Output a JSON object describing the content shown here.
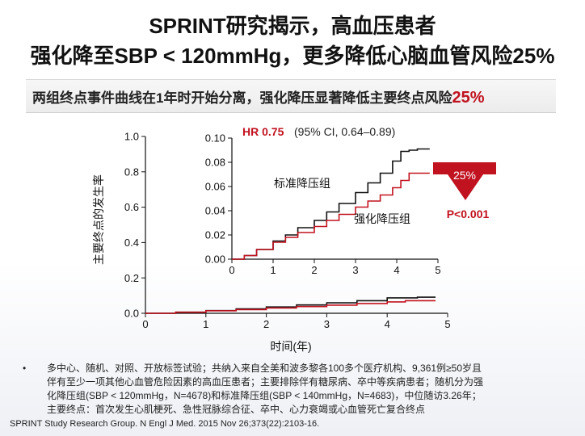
{
  "header": {
    "title_line1": "SPRINT研究揭示，高血压患者",
    "title_line2": "强化降至SBP < 120mmHg，更多降低心脑血管风险25%",
    "subtitle_text": "两组终点事件曲线在1年时开始分离，强化降压显著降低主要终点风险",
    "subtitle_pct": "25%"
  },
  "chart_data": [
    {
      "type": "line",
      "title": "",
      "xlabel": "时间(年)",
      "ylabel": "主要终点的发生率",
      "xlim": [
        0,
        5
      ],
      "ylim": [
        0,
        1.0
      ],
      "xticks": [
        "0",
        "1",
        "2",
        "3",
        "4",
        "5"
      ],
      "yticks": [
        "0.0",
        "0.2",
        "0.4",
        "0.6",
        "0.8",
        "1.0"
      ],
      "series": [
        {
          "name": "标准降压组",
          "color": "#111111",
          "x": [
            0,
            0.5,
            1,
            1.5,
            2,
            2.5,
            3,
            3.5,
            4,
            4.5,
            4.8
          ],
          "y": [
            0,
            0.006,
            0.015,
            0.025,
            0.036,
            0.047,
            0.059,
            0.071,
            0.087,
            0.091,
            0.091
          ]
        },
        {
          "name": "强化降压组",
          "color": "#c1121f",
          "x": [
            0,
            0.5,
            1,
            1.5,
            2,
            2.5,
            3,
            3.5,
            4,
            4.3,
            4.8
          ],
          "y": [
            0,
            0.006,
            0.014,
            0.021,
            0.03,
            0.038,
            0.046,
            0.055,
            0.064,
            0.071,
            0.071
          ]
        }
      ]
    },
    {
      "type": "line",
      "title": "",
      "xlim": [
        0,
        5
      ],
      "ylim": [
        0,
        0.1
      ],
      "xticks": [
        "0",
        "1",
        "2",
        "3",
        "4",
        "5"
      ],
      "yticks": [
        "0.00",
        "0.02",
        "0.04",
        "0.06",
        "0.08",
        "0.10"
      ],
      "hr_label": "HR 0.75",
      "ci_text": "(95% CI, 0.64–0.89)",
      "series": [
        {
          "name": "标准降压组",
          "color": "#111111",
          "x": [
            0,
            0.3,
            0.6,
            1,
            1.3,
            1.6,
            2,
            2.3,
            2.6,
            3,
            3.3,
            3.6,
            3.9,
            4.1,
            4.3,
            4.5,
            4.8
          ],
          "y": [
            0,
            0.003,
            0.008,
            0.015,
            0.02,
            0.026,
            0.032,
            0.039,
            0.046,
            0.055,
            0.063,
            0.071,
            0.081,
            0.089,
            0.09,
            0.091,
            0.091
          ]
        },
        {
          "name": "强化降压组",
          "color": "#c1121f",
          "x": [
            0,
            0.3,
            0.6,
            1,
            1.3,
            1.6,
            2,
            2.3,
            2.6,
            3,
            3.3,
            3.6,
            3.9,
            4.1,
            4.3,
            4.5,
            4.8
          ],
          "y": [
            0,
            0.003,
            0.008,
            0.014,
            0.018,
            0.022,
            0.027,
            0.032,
            0.037,
            0.043,
            0.048,
            0.053,
            0.059,
            0.065,
            0.071,
            0.071,
            0.071
          ]
        }
      ]
    }
  ],
  "annotation": {
    "arrow_label": "25%",
    "p_value": "P<0.001",
    "arrow_color": "#c1121f"
  },
  "notes": {
    "bullet_symbol": "•",
    "lines": [
      "多中心、随机、对照、开放标签试验；共纳入来自全美和波多黎各100多个医疗机构、9,361例≥50岁且",
      "伴有至少一项其他心血管危险因素的高血压患者；主要排除伴有糖尿病、卒中等疾病患者；随机分为强",
      "化降压组(SBP < 120mmHg，N=4678)和标准降压组(SBP < 140mmHg，N=4683)，中位随访3.26年；",
      "主要终点：首次发生心肌梗死、急性冠脉综合征、卒中、心力衰竭或心血管死亡复合终点"
    ]
  },
  "reference": "SPRINT Study Research Group. N Engl J Med. 2015 Nov 26;373(22):2103-16."
}
